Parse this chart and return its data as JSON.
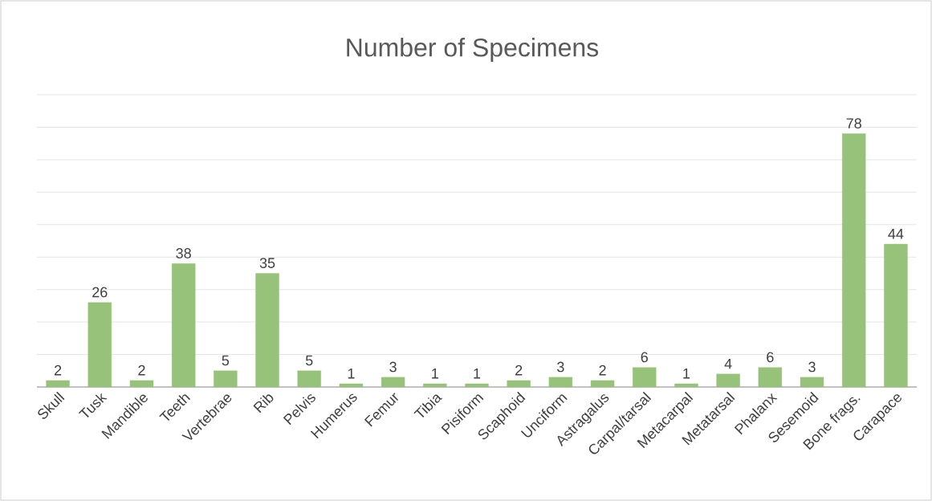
{
  "chart_data": {
    "type": "bar",
    "title": "Number of Specimens",
    "categories": [
      "Skull",
      "Tusk",
      "Mandible",
      "Teeth",
      "Vertebrae",
      "Rib",
      "Pelvis",
      "Humerus",
      "Femur",
      "Tibia",
      "Pisiform",
      "Scaphoid",
      "Unciform",
      "Astragalus",
      "Carpal/tarsal",
      "Metacarpal",
      "Metatarsal",
      "Phalanx",
      "Sesemoid",
      "Bone frags.",
      "Carapace"
    ],
    "values": [
      2,
      26,
      2,
      38,
      5,
      35,
      5,
      1,
      3,
      1,
      1,
      2,
      3,
      2,
      6,
      1,
      4,
      6,
      3,
      78,
      44
    ],
    "color": "#97c279",
    "ylim": [
      0,
      90
    ],
    "yticks": [
      0,
      10,
      20,
      30,
      40,
      50,
      60,
      70,
      80,
      90
    ],
    "grid": "y",
    "tick_labels": "x",
    "data_labels": true
  }
}
